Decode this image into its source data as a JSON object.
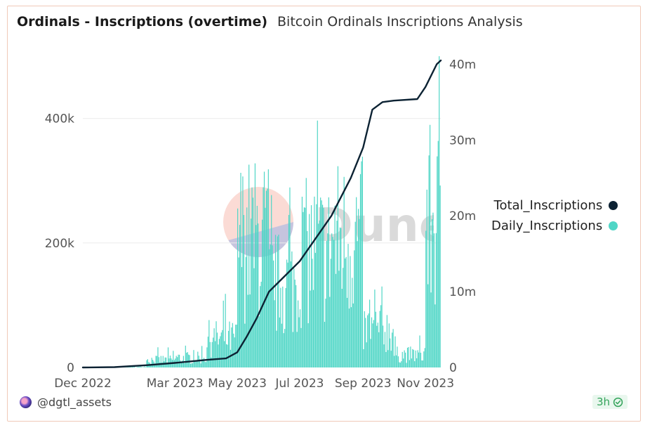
{
  "header": {
    "title": "Ordinals - Inscriptions (overtime)",
    "subtitle": "Bitcoin Ordinals Inscriptions Analysis"
  },
  "footer": {
    "author": "@dgtl_assets",
    "freshness": "3h"
  },
  "watermark": {
    "text": "Dune"
  },
  "colors": {
    "total": "#0c2233",
    "daily": "#4fd6c6",
    "badge_text": "#33a35a"
  },
  "chart_data": {
    "type": "bar+line",
    "x_ticks": [
      "Dec 2022",
      "Mar 2023",
      "May 2023",
      "Jul 2023",
      "Sep 2023",
      "Nov 2023"
    ],
    "y_left_ticks": [
      "0",
      "200k",
      "400k"
    ],
    "y_right_ticks": [
      "0",
      "10m",
      "20m",
      "30m",
      "40m"
    ],
    "y_left_range": [
      0,
      500000
    ],
    "y_right_range": [
      0,
      40500000
    ],
    "legend_position": "right",
    "legend": [
      {
        "name": "Total_Inscriptions",
        "color": "#0c2233"
      },
      {
        "name": "Daily_Inscriptions",
        "color": "#4fd6c6"
      }
    ],
    "series": [
      {
        "name": "Daily_Inscriptions",
        "type": "bar",
        "axis": "left",
        "monthly_typical_daily": [
          {
            "month": "Dec 2022",
            "value": 0
          },
          {
            "month": "Jan 2023",
            "value": 1000
          },
          {
            "month": "Feb 2023",
            "value": 12000
          },
          {
            "month": "Mar 2023",
            "value": 15000
          },
          {
            "month": "Apr 2023",
            "value": 45000
          },
          {
            "month": "May 2023",
            "value": 200000
          },
          {
            "month": "Jun 2023",
            "value": 130000
          },
          {
            "month": "Jul 2023",
            "value": 180000
          },
          {
            "month": "Aug 2023",
            "value": 200000
          },
          {
            "month": "Sep 2023",
            "value": 60000
          },
          {
            "month": "Oct 2023",
            "value": 20000
          },
          {
            "month": "Nov 2023",
            "value": 230000
          }
        ],
        "peak": 500000
      },
      {
        "name": "Total_Inscriptions",
        "type": "line",
        "axis": "right",
        "points": [
          {
            "date": "2022-12-01",
            "value": 0
          },
          {
            "date": "2023-01-01",
            "value": 50000
          },
          {
            "date": "2023-02-01",
            "value": 300000
          },
          {
            "date": "2023-03-01",
            "value": 600000
          },
          {
            "date": "2023-04-01",
            "value": 1000000
          },
          {
            "date": "2023-04-20",
            "value": 1200000
          },
          {
            "date": "2023-05-01",
            "value": 2000000
          },
          {
            "date": "2023-05-10",
            "value": 4000000
          },
          {
            "date": "2023-05-20",
            "value": 6500000
          },
          {
            "date": "2023-06-01",
            "value": 10000000
          },
          {
            "date": "2023-07-01",
            "value": 14000000
          },
          {
            "date": "2023-08-01",
            "value": 20000000
          },
          {
            "date": "2023-08-20",
            "value": 25000000
          },
          {
            "date": "2023-09-01",
            "value": 29000000
          },
          {
            "date": "2023-09-10",
            "value": 34000000
          },
          {
            "date": "2023-09-20",
            "value": 35000000
          },
          {
            "date": "2023-10-01",
            "value": 35200000
          },
          {
            "date": "2023-10-24",
            "value": 35400000
          },
          {
            "date": "2023-11-01",
            "value": 37000000
          },
          {
            "date": "2023-11-12",
            "value": 40000000
          },
          {
            "date": "2023-11-16",
            "value": 40500000
          }
        ]
      }
    ]
  }
}
